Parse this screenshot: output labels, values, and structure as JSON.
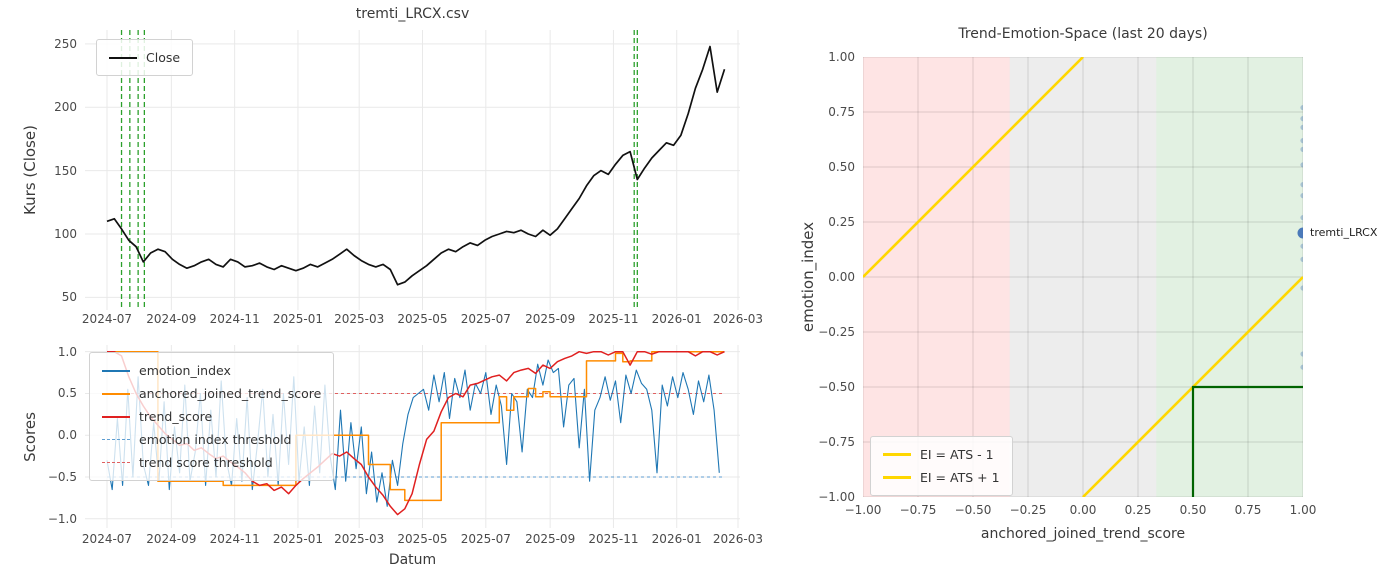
{
  "figure": {
    "background": "#ffffff",
    "grid_color_left": "#e9e9e9",
    "grid_color_right": "rgba(0,0,0,0.13)"
  },
  "chart_data": [
    {
      "id": "price",
      "type": "line",
      "title": "tremti_LRCX.csv",
      "xlabel": "",
      "ylabel": "Kurs (Close)",
      "x_tick_labels": [
        "2024-07",
        "2024-09",
        "2024-11",
        "2025-01",
        "2025-03",
        "2025-05",
        "2025-07",
        "2025-09",
        "2025-11",
        "2026-01",
        "2026-03"
      ],
      "y_ticks": [
        {
          "v": 50,
          "label": "50"
        },
        {
          "v": 100,
          "label": "100"
        },
        {
          "v": 150,
          "label": "150"
        },
        {
          "v": 200,
          "label": "200"
        },
        {
          "v": 250,
          "label": "250"
        }
      ],
      "ylim": [
        40,
        261
      ],
      "grid": true,
      "legend_position": "upper left",
      "series": [
        {
          "name": "Close",
          "color": "#111111",
          "width": 1.7,
          "style": "solid",
          "start_date": "2024-07-01",
          "interval_days": 7,
          "values": [
            110,
            112,
            104,
            95,
            90,
            78,
            85,
            88,
            86,
            80,
            76,
            73,
            75,
            78,
            80,
            76,
            74,
            80,
            78,
            74,
            75,
            77,
            74,
            72,
            75,
            73,
            71,
            73,
            76,
            74,
            77,
            80,
            84,
            88,
            83,
            79,
            76,
            74,
            76,
            72,
            60,
            62,
            67,
            71,
            75,
            80,
            85,
            88,
            86,
            90,
            93,
            91,
            95,
            98,
            100,
            102,
            101,
            103,
            100,
            98,
            103,
            99,
            104,
            112,
            120,
            128,
            138,
            146,
            150,
            147,
            155,
            162,
            165,
            143,
            152,
            160,
            166,
            172,
            170,
            178,
            195,
            215,
            230,
            248,
            212,
            230
          ]
        }
      ],
      "vlines": {
        "name": "signal-marker-lines",
        "color": "#2ca02c",
        "style": "dashed",
        "dates": [
          "2024-07-15",
          "2024-07-23",
          "2024-07-31",
          "2024-08-06",
          "2025-11-21",
          "2025-11-24"
        ]
      }
    },
    {
      "id": "scores",
      "type": "line",
      "title": "",
      "xlabel": "Datum",
      "ylabel": "Scores",
      "x_tick_labels": [
        "2024-07",
        "2024-09",
        "2024-11",
        "2025-01",
        "2025-03",
        "2025-05",
        "2025-07",
        "2025-09",
        "2025-11",
        "2026-01",
        "2026-03"
      ],
      "y_ticks": [
        {
          "v": -1.0,
          "label": "−1.0"
        },
        {
          "v": -0.5,
          "label": "−0.5"
        },
        {
          "v": 0.0,
          "label": "0.0"
        },
        {
          "v": 0.5,
          "label": "0.5"
        },
        {
          "v": 1.0,
          "label": "1.0"
        }
      ],
      "ylim": [
        -1.11,
        1.08
      ],
      "grid": true,
      "legend_position": "upper left",
      "series": [
        {
          "name": "emotion_index",
          "color": "#1f77b4",
          "width": 1.1,
          "style": "solid",
          "start_date": "2024-07-01",
          "interval_days": 5,
          "values": [
            -0.3,
            -0.65,
            0.2,
            -0.6,
            0.55,
            -0.5,
            0.7,
            -0.35,
            -0.6,
            0.15,
            -0.55,
            0.4,
            -0.65,
            0.1,
            -0.45,
            0.6,
            -0.55,
            -0.2,
            0.5,
            -0.6,
            0.3,
            -0.5,
            0.65,
            -0.3,
            -0.6,
            0.2,
            -0.55,
            0.45,
            -0.65,
            -0.1,
            0.55,
            -0.5,
            0.25,
            -0.6,
            0.5,
            -0.35,
            0.7,
            -0.55,
            0.1,
            -0.6,
            0.35,
            -0.45,
            0.6,
            -0.25,
            -0.65,
            0.3,
            -0.55,
            0.15,
            -0.4,
            0.1,
            -0.7,
            -0.2,
            -0.8,
            -0.45,
            -0.85,
            -0.3,
            -0.6,
            -0.1,
            0.25,
            0.45,
            0.5,
            0.55,
            0.3,
            0.72,
            0.4,
            0.75,
            0.2,
            0.68,
            0.45,
            0.78,
            0.3,
            0.62,
            0.5,
            0.75,
            0.25,
            0.6,
            0.35,
            -0.35,
            0.5,
            0.4,
            -0.2,
            0.55,
            0.45,
            0.85,
            0.6,
            0.9,
            0.75,
            0.8,
            0.1,
            0.6,
            0.68,
            -0.15,
            0.55,
            -0.55,
            0.3,
            0.45,
            0.7,
            0.42,
            0.65,
            0.15,
            0.72,
            0.5,
            0.78,
            0.62,
            0.55,
            0.3,
            -0.45,
            0.6,
            0.35,
            0.7,
            0.45,
            0.75,
            0.55,
            0.25,
            0.65,
            0.4,
            0.72,
            0.3,
            -0.45
          ]
        },
        {
          "name": "anchored_joined_trend_score",
          "color": "#ff8c00",
          "width": 1.5,
          "style": "step",
          "start_date": "2024-07-01",
          "interval_days": 7,
          "values": [
            1,
            1,
            1,
            1,
            1,
            1,
            1,
            -0.55,
            -0.55,
            -0.55,
            -0.55,
            -0.55,
            -0.55,
            -0.55,
            -0.55,
            -0.55,
            -0.6,
            -0.6,
            -0.6,
            -0.6,
            -0.6,
            -0.6,
            -0.6,
            -0.6,
            -0.6,
            -0.6,
            0,
            0,
            0,
            0,
            0,
            0,
            0,
            0,
            0,
            0,
            -0.35,
            -0.35,
            -0.35,
            -0.65,
            -0.65,
            -0.78,
            -0.78,
            -0.78,
            -0.78,
            -0.78,
            0.15,
            0.15,
            0.15,
            0.15,
            0.15,
            0.15,
            0.15,
            0.15,
            0.46,
            0.3,
            0.46,
            0.46,
            0.56,
            0.46,
            0.52,
            0.46,
            0.46,
            0.46,
            0.46,
            0.46,
            0.89,
            0.89,
            0.89,
            0.89,
            0.98,
            0.88,
            0.89,
            0.89,
            0.89,
            1,
            1,
            1,
            1,
            1,
            1,
            1,
            1,
            1,
            1,
            1
          ]
        },
        {
          "name": "trend_score",
          "color": "#e02020",
          "width": 1.5,
          "style": "solid",
          "start_date": "2024-07-01",
          "interval_days": 7,
          "values": [
            1.0,
            1.0,
            0.95,
            0.7,
            0.5,
            0.35,
            0.22,
            0.12,
            0.02,
            -0.05,
            -0.12,
            -0.1,
            -0.18,
            -0.15,
            -0.22,
            -0.28,
            -0.25,
            -0.32,
            -0.38,
            -0.45,
            -0.55,
            -0.6,
            -0.58,
            -0.66,
            -0.62,
            -0.7,
            -0.6,
            -0.52,
            -0.45,
            -0.38,
            -0.3,
            -0.22,
            -0.25,
            -0.2,
            -0.28,
            -0.35,
            -0.5,
            -0.62,
            -0.72,
            -0.85,
            -0.95,
            -0.88,
            -0.7,
            -0.35,
            -0.05,
            0.05,
            0.28,
            0.45,
            0.5,
            0.46,
            0.6,
            0.62,
            0.66,
            0.7,
            0.72,
            0.65,
            0.75,
            0.78,
            0.8,
            0.74,
            0.84,
            0.8,
            0.88,
            0.92,
            0.95,
            1.0,
            0.98,
            1.0,
            1.0,
            0.96,
            1.0,
            1.0,
            0.84,
            1.0,
            1.0,
            0.97,
            1.0,
            1.0,
            1.0,
            1.0,
            1.0,
            0.95,
            1.0,
            1.0,
            0.96,
            1.0
          ]
        }
      ],
      "thresholds": [
        {
          "name": "emotion index threshold",
          "y": -0.5,
          "color": "#5f9ed1",
          "style": "dashed"
        },
        {
          "name": "trend score threshold",
          "y": 0.5,
          "color": "#e06060",
          "style": "dashed"
        }
      ]
    },
    {
      "id": "space",
      "type": "scatter",
      "title": "Trend-Emotion-Space (last 20 days)",
      "xlabel": "anchored_joined_trend_score",
      "ylabel": "emotion_index",
      "xlim": [
        -1,
        1
      ],
      "ylim": [
        -1,
        1
      ],
      "x_ticks": [
        {
          "v": -1,
          "label": "−1.00"
        },
        {
          "v": -0.75,
          "label": "−0.75"
        },
        {
          "v": -0.5,
          "label": "−0.50"
        },
        {
          "v": -0.25,
          "label": "−0.25"
        },
        {
          "v": 0,
          "label": "0.00"
        },
        {
          "v": 0.25,
          "label": "0.25"
        },
        {
          "v": 0.5,
          "label": "0.50"
        },
        {
          "v": 0.75,
          "label": "0.75"
        },
        {
          "v": 1,
          "label": "1.00"
        }
      ],
      "y_ticks": [
        {
          "v": -1,
          "label": "−1.00"
        },
        {
          "v": -0.75,
          "label": "−0.75"
        },
        {
          "v": -0.5,
          "label": "−0.50"
        },
        {
          "v": -0.25,
          "label": "−0.25"
        },
        {
          "v": 0,
          "label": "0.00"
        },
        {
          "v": 0.25,
          "label": "0.25"
        },
        {
          "v": 0.5,
          "label": "0.50"
        },
        {
          "v": 0.75,
          "label": "0.75"
        },
        {
          "v": 1,
          "label": "1.00"
        }
      ],
      "grid": true,
      "legend_position": "lower left",
      "regions": [
        {
          "name": "negative-zone",
          "from": -1,
          "to": -0.3333,
          "color": "rgba(247,106,106,0.18)"
        },
        {
          "name": "neutral-zone",
          "from": -0.3333,
          "to": 0.3333,
          "color": "rgba(128,128,128,0.14)"
        },
        {
          "name": "positive-zone",
          "from": 0.3333,
          "to": 1,
          "color": "rgba(96,176,96,0.18)"
        }
      ],
      "ref_lines": [
        {
          "name": "EI = ATS - 1",
          "color": "#ffd700",
          "width": 2.6,
          "from": [
            0,
            -1
          ],
          "to": [
            1,
            0
          ]
        },
        {
          "name": "EI = ATS + 1",
          "color": "#ffd700",
          "width": 2.6,
          "from": [
            -1,
            0
          ],
          "to": [
            0,
            1
          ]
        }
      ],
      "boundary": {
        "name": "decision-boundary",
        "color": "#006400",
        "width": 2.2,
        "points": [
          [
            0.5,
            -1
          ],
          [
            0.5,
            -0.5
          ],
          [
            1,
            -0.5
          ]
        ]
      },
      "points_color": "#3b6db5",
      "points": [
        [
          1,
          0.77
        ],
        [
          1,
          0.72
        ],
        [
          1,
          0.68
        ],
        [
          1,
          0.62
        ],
        [
          1,
          0.58
        ],
        [
          1,
          0.51
        ],
        [
          1,
          0.42
        ],
        [
          1,
          0.37
        ],
        [
          1,
          0.27
        ],
        [
          1,
          0.14
        ],
        [
          1,
          0.08
        ],
        [
          1,
          -0.05
        ],
        [
          1,
          -0.35
        ],
        [
          1,
          -0.41
        ]
      ],
      "highlight_point": {
        "x": 1.0,
        "y": 0.2,
        "label": "tremti_LRCX"
      }
    }
  ]
}
